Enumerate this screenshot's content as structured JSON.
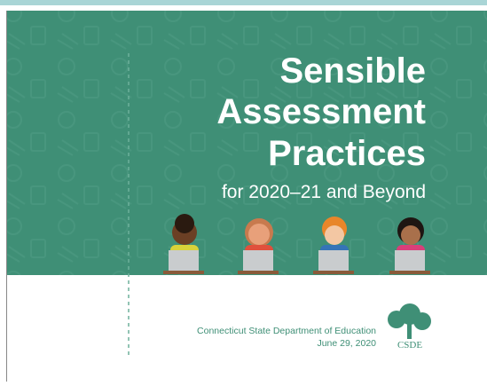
{
  "cover": {
    "title_lines": [
      "Sensible",
      "Assessment",
      "Practices"
    ],
    "subtitle": "for 2020–21 and Beyond",
    "organization": "Connecticut State Department of Education",
    "date": "June 29, 2020",
    "logo_text": "CSDE"
  }
}
